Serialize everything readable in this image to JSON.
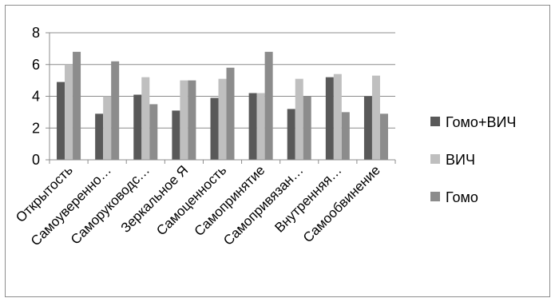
{
  "chart_data": {
    "type": "bar",
    "categories": [
      "Открытость",
      "Самоуверенно…",
      "Саморуководс…",
      "Зеркальное Я",
      "Самоценность",
      "Самопринятие",
      "Самопривязан…",
      "Внутренняя…",
      "Самообвинение"
    ],
    "series": [
      {
        "name": "Гомо+ВИЧ",
        "color": "#595959",
        "values": [
          4.9,
          2.9,
          4.1,
          3.1,
          3.9,
          4.2,
          3.2,
          5.2,
          4.0
        ]
      },
      {
        "name": "ВИЧ",
        "color": "#bfbfbf",
        "values": [
          6.0,
          4.0,
          5.2,
          5.0,
          5.1,
          4.2,
          5.1,
          5.4,
          5.3
        ]
      },
      {
        "name": "Гомо",
        "color": "#8c8c8c",
        "values": [
          6.8,
          6.2,
          3.5,
          5.0,
          5.8,
          6.8,
          4.0,
          3.0,
          2.9
        ]
      }
    ],
    "title": "",
    "xlabel": "",
    "ylabel": "",
    "ylim": [
      0,
      8
    ],
    "yticks": [
      0,
      2,
      4,
      6,
      8
    ],
    "grid": true,
    "legend_position": "right"
  }
}
